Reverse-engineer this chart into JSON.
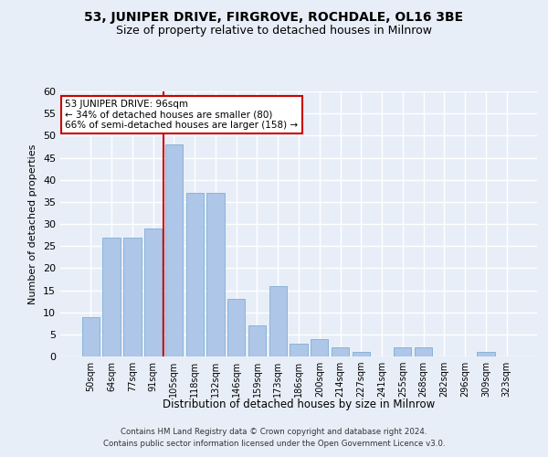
{
  "title1": "53, JUNIPER DRIVE, FIRGROVE, ROCHDALE, OL16 3BE",
  "title2": "Size of property relative to detached houses in Milnrow",
  "xlabel": "Distribution of detached houses by size in Milnrow",
  "ylabel": "Number of detached properties",
  "categories": [
    "50sqm",
    "64sqm",
    "77sqm",
    "91sqm",
    "105sqm",
    "118sqm",
    "132sqm",
    "146sqm",
    "159sqm",
    "173sqm",
    "186sqm",
    "200sqm",
    "214sqm",
    "227sqm",
    "241sqm",
    "255sqm",
    "268sqm",
    "282sqm",
    "296sqm",
    "309sqm",
    "323sqm"
  ],
  "values": [
    9,
    27,
    27,
    29,
    48,
    37,
    37,
    13,
    7,
    16,
    3,
    4,
    2,
    1,
    0,
    2,
    2,
    0,
    0,
    1,
    0
  ],
  "bar_color": "#aec6e8",
  "bar_edgecolor": "#8ab4d8",
  "ylim": [
    0,
    60
  ],
  "yticks": [
    0,
    5,
    10,
    15,
    20,
    25,
    30,
    35,
    40,
    45,
    50,
    55,
    60
  ],
  "marker_line_color": "#cc0000",
  "annotation_line1": "53 JUNIPER DRIVE: 96sqm",
  "annotation_line2": "← 34% of detached houses are smaller (80)",
  "annotation_line3": "66% of semi-detached houses are larger (158) →",
  "annotation_box_color": "#ffffff",
  "annotation_box_edgecolor": "#cc0000",
  "footer1": "Contains HM Land Registry data © Crown copyright and database right 2024.",
  "footer2": "Contains public sector information licensed under the Open Government Licence v3.0.",
  "bg_color": "#e8eef8",
  "grid_color": "#ffffff",
  "title1_fontsize": 10,
  "title2_fontsize": 9
}
